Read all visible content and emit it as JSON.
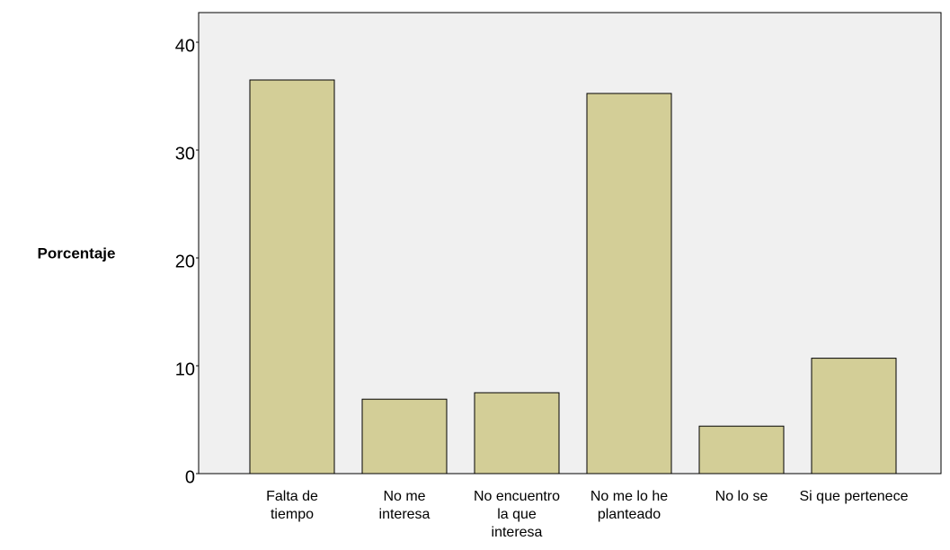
{
  "chart_data": {
    "type": "bar",
    "y_label": "Porcentaje",
    "categories": [
      "Falta de tiempo",
      "No me interesa",
      "No encuentro la que interesa",
      "No me lo he planteado",
      "No lo se",
      "Si que pertenece"
    ],
    "values": [
      36.5,
      6.9,
      7.5,
      35.25,
      4.4,
      10.7
    ],
    "color": "#d3ce97",
    "ylim": [
      0,
      42.75
    ],
    "yticks": [
      0,
      10,
      20,
      30,
      40
    ],
    "grid": false
  }
}
